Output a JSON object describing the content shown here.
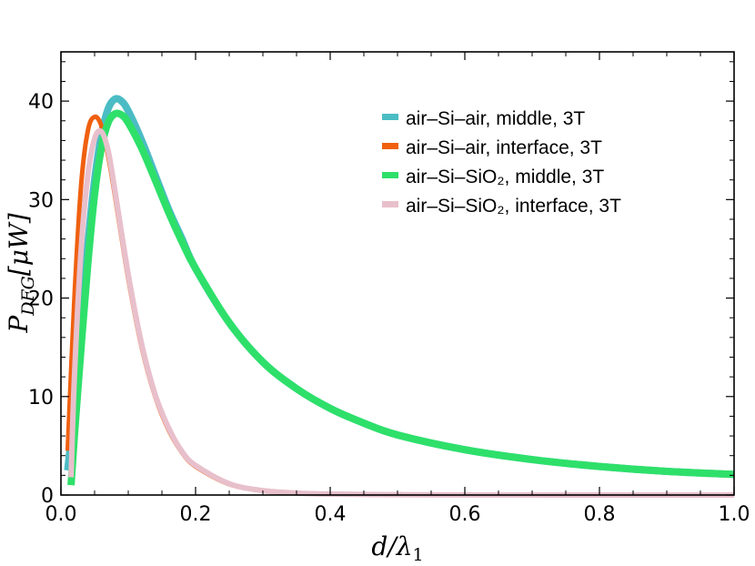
{
  "chart_data": {
    "type": "line",
    "title": "",
    "xlabel": "d/λ1",
    "ylabel": "P_DFG [μW]",
    "xlim": [
      0.0,
      1.0
    ],
    "ylim": [
      0,
      45
    ],
    "x_ticks": [
      0.0,
      0.2,
      0.4,
      0.6,
      0.8,
      1.0
    ],
    "x_tick_labels": [
      "0.0",
      "0.2",
      "0.4",
      "0.6",
      "0.8",
      "1.0"
    ],
    "y_ticks": [
      0,
      10,
      20,
      30,
      40
    ],
    "y_tick_labels": [
      "0",
      "10",
      "20",
      "30",
      "40"
    ],
    "legend_position": "top-right",
    "series": [
      {
        "name": "air–Si–air, middle, 3T",
        "color": "#4bbcc4",
        "x": [
          0.01,
          0.02,
          0.03,
          0.04,
          0.05,
          0.06,
          0.07,
          0.08,
          0.09,
          0.1,
          0.12,
          0.14,
          0.16,
          0.18,
          0.2,
          0.25,
          0.3,
          0.35,
          0.4,
          0.45,
          0.5,
          0.6,
          0.7,
          0.8,
          0.9,
          1.0
        ],
        "y": [
          2.5,
          9.0,
          17.5,
          25.5,
          32.0,
          36.5,
          39.2,
          40.2,
          40.0,
          39.0,
          36.0,
          32.5,
          29.0,
          26.0,
          23.0,
          17.5,
          13.5,
          10.8,
          8.8,
          7.3,
          6.1,
          4.6,
          3.6,
          2.9,
          2.4,
          2.1
        ]
      },
      {
        "name": "air–Si–air, interface, 3T",
        "color": "#f0600f",
        "x": [
          0.01,
          0.02,
          0.03,
          0.04,
          0.05,
          0.06,
          0.07,
          0.08,
          0.1,
          0.12,
          0.14,
          0.16,
          0.18,
          0.2,
          0.25,
          0.3,
          0.35,
          0.4,
          0.5,
          0.6,
          0.8,
          1.0
        ],
        "y": [
          4.5,
          20.0,
          31.5,
          37.0,
          38.4,
          37.5,
          34.5,
          30.5,
          22.0,
          15.0,
          10.0,
          6.6,
          4.3,
          2.9,
          1.1,
          0.45,
          0.2,
          0.1,
          0.03,
          0.01,
          0.0,
          0.0
        ]
      },
      {
        "name": "air–Si–SiO₂, middle, 3T",
        "color": "#2ee06a",
        "x": [
          0.015,
          0.02,
          0.03,
          0.04,
          0.05,
          0.06,
          0.07,
          0.08,
          0.09,
          0.1,
          0.12,
          0.14,
          0.16,
          0.18,
          0.2,
          0.25,
          0.3,
          0.35,
          0.4,
          0.45,
          0.5,
          0.6,
          0.7,
          0.8,
          0.9,
          1.0
        ],
        "y": [
          1.0,
          6.0,
          15.0,
          23.5,
          30.5,
          35.2,
          37.8,
          38.7,
          38.6,
          37.8,
          35.2,
          32.0,
          28.7,
          25.7,
          23.0,
          17.5,
          13.5,
          10.8,
          8.8,
          7.3,
          6.1,
          4.6,
          3.6,
          2.9,
          2.4,
          2.1
        ]
      },
      {
        "name": "air–Si–SiO₂, interface, 3T",
        "color": "#e8c0cc",
        "x": [
          0.015,
          0.02,
          0.03,
          0.04,
          0.05,
          0.06,
          0.07,
          0.08,
          0.1,
          0.12,
          0.14,
          0.16,
          0.18,
          0.2,
          0.25,
          0.3,
          0.35,
          0.4,
          0.5,
          0.6,
          0.8,
          1.0
        ],
        "y": [
          1.8,
          12.0,
          25.0,
          32.5,
          36.2,
          36.9,
          35.0,
          31.0,
          22.4,
          15.3,
          10.2,
          6.8,
          4.4,
          3.0,
          1.15,
          0.45,
          0.2,
          0.1,
          0.03,
          0.01,
          0.0,
          0.0
        ]
      }
    ]
  }
}
